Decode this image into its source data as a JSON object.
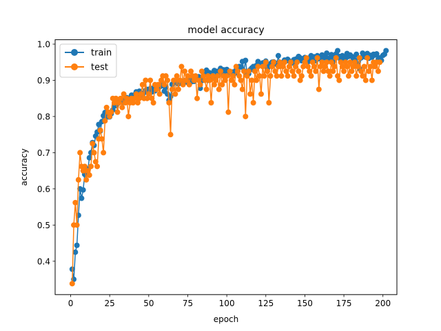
{
  "chart_data": {
    "type": "line",
    "title": "model accuracy",
    "xlabel": "epoch",
    "ylabel": "accuracy",
    "xlim": [
      -9.95,
      208.95
    ],
    "ylim": [
      0.3078,
      1.0122
    ],
    "xticks": [
      0,
      25,
      50,
      75,
      100,
      125,
      150,
      175,
      200
    ],
    "yticks": [
      0.4,
      0.5,
      0.6,
      0.7,
      0.8,
      0.9,
      1.0
    ],
    "legend": {
      "position": "top-left",
      "entries": [
        "train",
        "test"
      ]
    },
    "series": [
      {
        "name": "train",
        "color": "#1f77b4",
        "values": [
          0.378,
          0.35,
          0.425,
          0.444,
          0.527,
          0.6,
          0.574,
          0.597,
          0.64,
          0.656,
          0.652,
          0.686,
          0.7,
          0.728,
          0.72,
          0.746,
          0.757,
          0.778,
          0.76,
          0.786,
          0.802,
          0.811,
          0.807,
          0.799,
          0.799,
          0.808,
          0.818,
          0.829,
          0.83,
          0.835,
          0.841,
          0.845,
          0.846,
          0.839,
          0.848,
          0.852,
          0.844,
          0.851,
          0.859,
          0.853,
          0.86,
          0.868,
          0.862,
          0.87,
          0.863,
          0.858,
          0.866,
          0.872,
          0.875,
          0.874,
          0.877,
          0.868,
          0.879,
          0.871,
          0.882,
          0.879,
          0.882,
          0.888,
          0.885,
          0.87,
          0.881,
          0.862,
          0.845,
          0.855,
          0.889,
          0.892,
          0.896,
          0.895,
          0.89,
          0.893,
          0.898,
          0.893,
          0.899,
          0.895,
          0.9,
          0.902,
          0.895,
          0.905,
          0.897,
          0.903,
          0.906,
          0.91,
          0.878,
          0.899,
          0.912,
          0.915,
          0.928,
          0.9,
          0.921,
          0.918,
          0.91,
          0.927,
          0.925,
          0.918,
          0.926,
          0.933,
          0.92,
          0.929,
          0.922,
          0.93,
          0.921,
          0.923,
          0.918,
          0.923,
          0.919,
          0.929,
          0.926,
          0.938,
          0.937,
          0.952,
          0.926,
          0.955,
          0.919,
          0.918,
          0.929,
          0.934,
          0.938,
          0.925,
          0.941,
          0.952,
          0.945,
          0.942,
          0.948,
          0.944,
          0.953,
          0.932,
          0.942,
          0.946,
          0.95,
          0.951,
          0.948,
          0.944,
          0.968,
          0.939,
          0.948,
          0.95,
          0.956,
          0.954,
          0.958,
          0.953,
          0.952,
          0.948,
          0.957,
          0.958,
          0.96,
          0.966,
          0.962,
          0.954,
          0.959,
          0.963,
          0.957,
          0.951,
          0.962,
          0.968,
          0.958,
          0.965,
          0.954,
          0.968,
          0.96,
          0.959,
          0.97,
          0.962,
          0.966,
          0.975,
          0.958,
          0.962,
          0.971,
          0.95,
          0.965,
          0.973,
          0.982,
          0.966,
          0.955,
          0.968,
          0.963,
          0.96,
          0.974,
          0.966,
          0.97,
          0.966,
          0.961,
          0.956,
          0.972,
          0.945,
          0.932,
          0.962,
          0.975,
          0.966,
          0.964,
          0.974,
          0.961,
          0.969,
          0.964,
          0.972,
          0.97,
          0.973,
          0.958,
          0.962,
          0.955,
          0.969,
          0.972,
          0.982
        ]
      },
      {
        "name": "test",
        "color": "#ff7f0e",
        "values": [
          0.338,
          0.5,
          0.562,
          0.5,
          0.625,
          0.7,
          0.662,
          0.65,
          0.662,
          0.625,
          0.65,
          0.638,
          0.662,
          0.725,
          0.7,
          0.675,
          0.662,
          0.738,
          0.762,
          0.738,
          0.7,
          0.788,
          0.825,
          0.812,
          0.8,
          0.812,
          0.85,
          0.838,
          0.85,
          0.812,
          0.838,
          0.85,
          0.825,
          0.862,
          0.838,
          0.85,
          0.8,
          0.838,
          0.85,
          0.838,
          0.85,
          0.862,
          0.838,
          0.85,
          0.862,
          0.888,
          0.85,
          0.9,
          0.85,
          0.862,
          0.9,
          0.85,
          0.838,
          0.888,
          0.875,
          0.888,
          0.862,
          0.9,
          0.912,
          0.888,
          0.912,
          0.9,
          0.838,
          0.75,
          0.875,
          0.9,
          0.862,
          0.912,
          0.875,
          0.9,
          0.938,
          0.888,
          0.925,
          0.9,
          0.912,
          0.888,
          0.925,
          0.912,
          0.9,
          0.912,
          0.85,
          0.9,
          0.888,
          0.925,
          0.912,
          0.9,
          0.875,
          0.912,
          0.9,
          0.838,
          0.912,
          0.888,
          0.9,
          0.912,
          0.875,
          0.925,
          0.888,
          0.912,
          0.9,
          0.912,
          0.812,
          0.925,
          0.9,
          0.912,
          0.888,
          0.938,
          0.925,
          0.912,
          0.9,
          0.875,
          0.925,
          0.8,
          0.912,
          0.925,
          0.862,
          0.9,
          0.838,
          0.925,
          0.9,
          0.938,
          0.912,
          0.862,
          0.938,
          0.912,
          0.95,
          0.925,
          0.838,
          0.912,
          0.938,
          0.95,
          0.925,
          0.912,
          0.938,
          0.95,
          0.912,
          0.938,
          0.95,
          0.925,
          0.912,
          0.938,
          0.95,
          0.925,
          0.912,
          0.938,
          0.95,
          0.925,
          0.9,
          0.912,
          0.938,
          0.95,
          0.962,
          0.938,
          0.925,
          0.912,
          0.95,
          0.938,
          0.925,
          0.962,
          0.875,
          0.938,
          0.95,
          0.925,
          0.938,
          0.95,
          0.925,
          0.912,
          0.95,
          0.925,
          0.938,
          0.962,
          0.912,
          0.9,
          0.95,
          0.938,
          0.925,
          0.95,
          0.938,
          0.912,
          0.95,
          0.925,
          0.938,
          0.95,
          0.912,
          0.938,
          0.962,
          0.925,
          0.912,
          0.938,
          0.9,
          0.962,
          0.925,
          0.938,
          0.9,
          0.95,
          0.938,
          0.95,
          0.925,
          0.95
        ]
      }
    ]
  }
}
